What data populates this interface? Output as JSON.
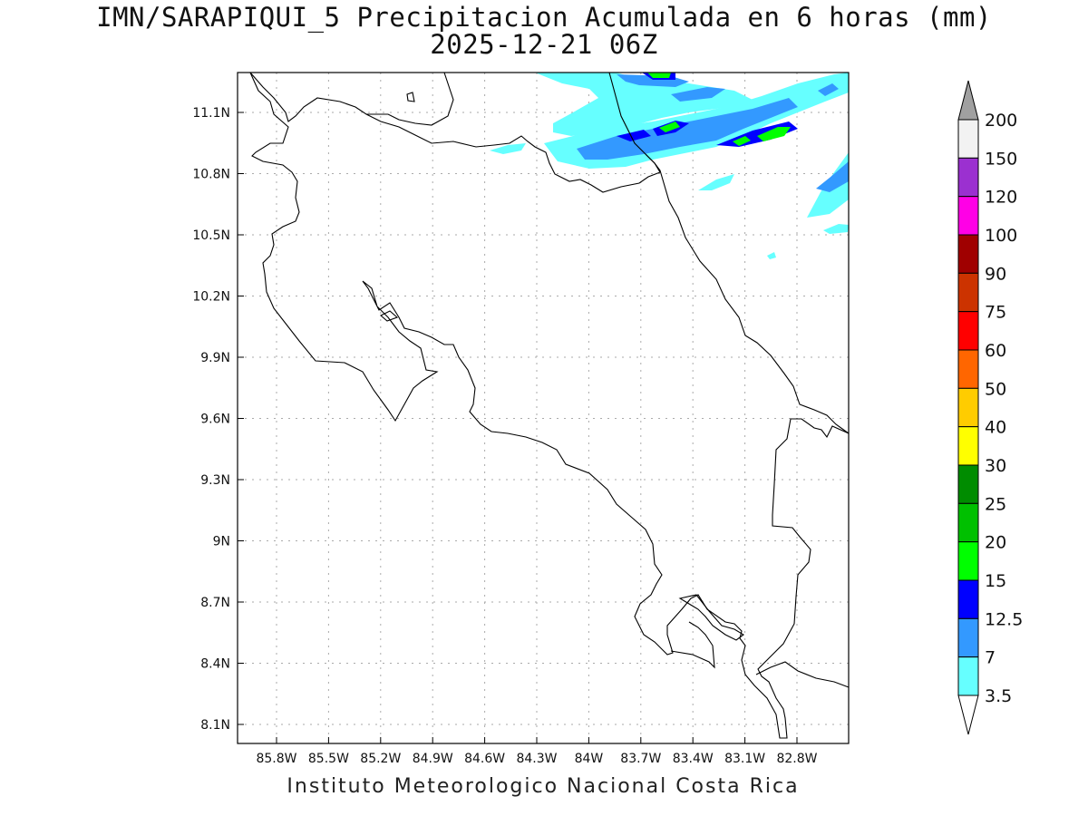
{
  "title": "IMN/SARAPIQUI_5 Precipitacion Acumulada en 6 horas (mm)",
  "subtitle": "2025-12-21 06Z",
  "credit": "Instituto Meteorologico Nacional Costa Rica",
  "map": {
    "lon_ticks": [
      "85.8W",
      "85.5W",
      "85.2W",
      "84.9W",
      "84.6W",
      "84.3W",
      "84W",
      "83.7W",
      "83.4W",
      "83.1W",
      "82.8W"
    ],
    "lat_ticks": [
      "11.1N",
      "10.8N",
      "10.5N",
      "10.2N",
      "9.9N",
      "9.6N",
      "9.3N",
      "9N",
      "8.7N",
      "8.4N",
      "8.1N"
    ]
  },
  "colorbar": {
    "labels": [
      "200",
      "150",
      "120",
      "100",
      "90",
      "75",
      "60",
      "50",
      "40",
      "30",
      "25",
      "20",
      "15",
      "12.5",
      "7",
      "3.5"
    ],
    "colors": [
      "#a0a0a0",
      "#f2f2f2",
      "#9b30d0",
      "#ff00e6",
      "#a00000",
      "#cc3300",
      "#ff0000",
      "#ff6600",
      "#ffcc00",
      "#ffff00",
      "#008c00",
      "#00c000",
      "#00ff00",
      "#0000ff",
      "#3399ff",
      "#66ffff",
      "#ffffff"
    ]
  }
}
